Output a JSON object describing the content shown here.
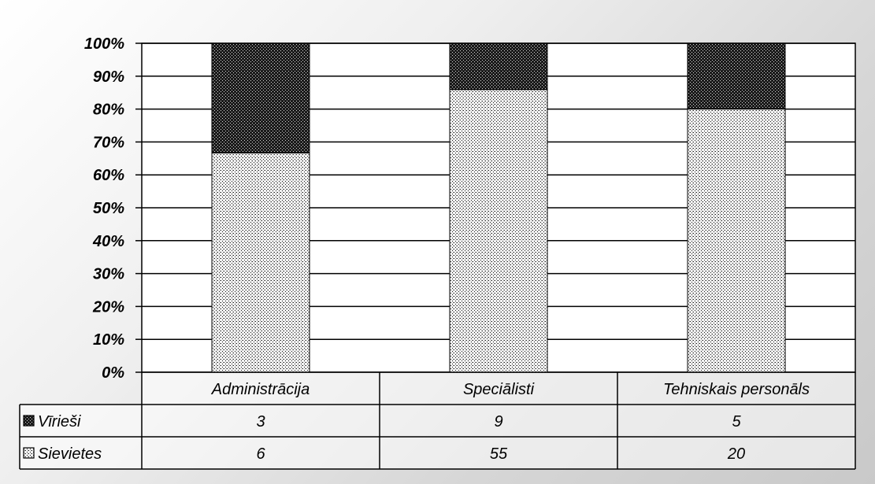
{
  "chart_data": {
    "type": "bar",
    "stacked": true,
    "percent": true,
    "categories": [
      "Administrācija",
      "Speciālisti",
      "Tehniskais personāls"
    ],
    "series": [
      {
        "name": "Sievietes",
        "values": [
          6,
          55,
          20
        ],
        "pattern": "light-dots"
      },
      {
        "name": "Vīrieši",
        "values": [
          3,
          9,
          5
        ],
        "pattern": "dark-dots"
      }
    ],
    "table_order": [
      "Vīrieši",
      "Sievietes"
    ],
    "ytick_labels": [
      "0%",
      "10%",
      "20%",
      "30%",
      "40%",
      "50%",
      "60%",
      "70%",
      "80%",
      "90%",
      "100%"
    ],
    "ylim": [
      0,
      100
    ],
    "grid": true,
    "data_table": true
  }
}
